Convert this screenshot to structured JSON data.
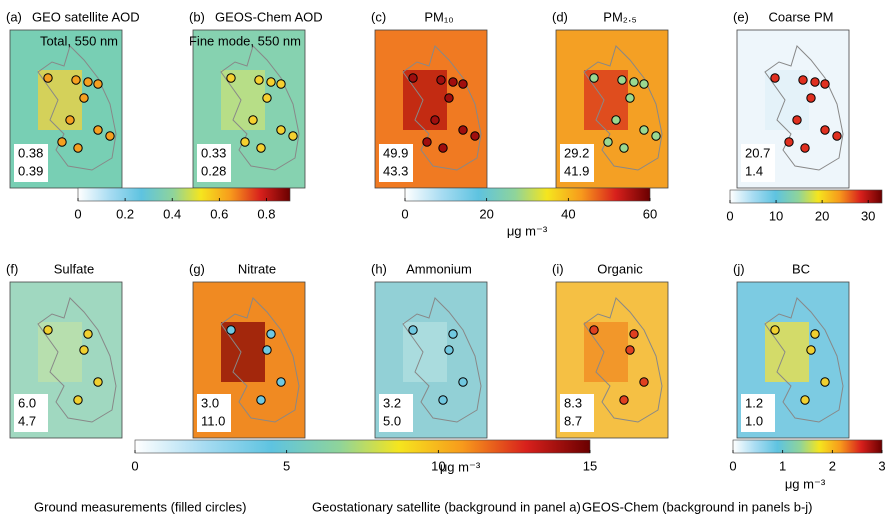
{
  "panels": [
    {
      "label": "(a)",
      "title": "GEO satellite AOD",
      "note": "Total, 550 nm",
      "stats": [
        "0.38",
        "0.39"
      ]
    },
    {
      "label": "(b)",
      "title": "GEOS-Chem AOD",
      "note": "Fine mode, 550 nm",
      "stats": [
        "0.33",
        "0.28"
      ]
    },
    {
      "label": "(c)",
      "title": "PM₁₀",
      "stats": [
        "49.9",
        "43.3"
      ]
    },
    {
      "label": "(d)",
      "title": "PM₂.₅",
      "stats": [
        "29.2",
        "41.9"
      ]
    },
    {
      "label": "(e)",
      "title": "Coarse PM",
      "stats": [
        "20.7",
        "1.4"
      ]
    },
    {
      "label": "(f)",
      "title": "Sulfate",
      "stats": [
        "6.0",
        "4.7"
      ]
    },
    {
      "label": "(g)",
      "title": "Nitrate",
      "stats": [
        "3.0",
        "11.0"
      ]
    },
    {
      "label": "(h)",
      "title": "Ammonium",
      "stats": [
        "3.2",
        "5.0"
      ]
    },
    {
      "label": "(i)",
      "title": "Organic",
      "stats": [
        "8.3",
        "8.7"
      ]
    },
    {
      "label": "(j)",
      "title": "BC",
      "stats": [
        "1.2",
        "1.0"
      ]
    }
  ],
  "colorbars": [
    {
      "lim": [
        0,
        0.9
      ],
      "ticks": [
        0,
        0.2,
        0.4,
        0.6,
        0.8
      ]
    },
    {
      "lim": [
        0,
        60
      ],
      "ticks": [
        0,
        20,
        40,
        60
      ],
      "unit": "μg m⁻³"
    },
    {
      "lim": [
        0,
        33
      ],
      "ticks": [
        0,
        10,
        20,
        30
      ]
    },
    {
      "lim": [
        0,
        15
      ],
      "ticks": [
        0,
        5,
        10,
        15
      ],
      "unit": "μg m⁻³"
    },
    {
      "lim": [
        0,
        3
      ],
      "ticks": [
        0,
        1,
        2,
        3
      ],
      "unit": "μg m⁻³"
    }
  ],
  "legend": [
    "Ground measurements (filled circles)",
    "Geostationary satellite (background in panel a)",
    "GEOS-Chem (background in panels b-j)"
  ]
}
